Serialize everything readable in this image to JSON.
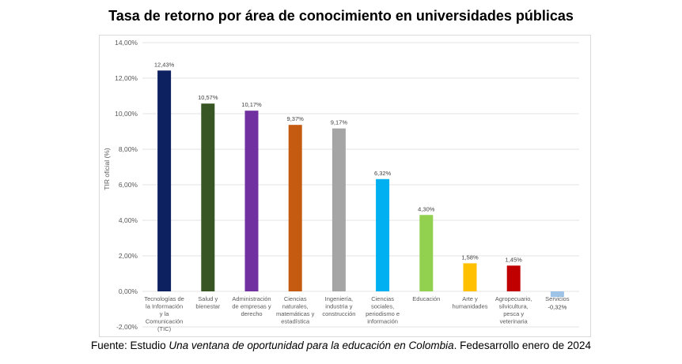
{
  "chart_data": {
    "type": "bar",
    "title": "Tasa de retorno por área de conocimiento en universidades públicas",
    "ylabel": "TIR oficial (%)",
    "xlabel": "",
    "ylim": [
      -2,
      14
    ],
    "yticks": [
      14,
      12,
      10,
      8,
      6,
      4,
      2,
      0,
      -2
    ],
    "ytick_labels": [
      "14,00%",
      "12,00%",
      "10,00%",
      "8,00%",
      "6,00%",
      "4,00%",
      "2,00%",
      "0,00%",
      "-2,00%"
    ],
    "grid": true,
    "categories": [
      [
        "Tecnologías de",
        "la Información",
        "y la",
        "Comunicación",
        "(TIC)"
      ],
      [
        "Salud y",
        "bienestar"
      ],
      [
        "Administración",
        "de empresas y",
        "derecho"
      ],
      [
        "Ciencias",
        "naturales,",
        "matemáticas y",
        "estadística"
      ],
      [
        "Ingeniería,",
        "industria y",
        "construcción"
      ],
      [
        "Ciencias",
        "sociales,",
        "periodismo e",
        "información"
      ],
      [
        "Educación"
      ],
      [
        "Arte y",
        "humanidades"
      ],
      [
        "Agropecuario,",
        "silvicultura,",
        "pesca y",
        "veterinaria"
      ],
      [
        "Servicios"
      ]
    ],
    "values": [
      12.43,
      10.57,
      10.17,
      9.37,
      9.17,
      6.32,
      4.3,
      1.58,
      1.45,
      -0.32
    ],
    "value_labels": [
      "12,43%",
      "10,57%",
      "10,17%",
      "9,37%",
      "9,17%",
      "6,32%",
      "4,30%",
      "1,58%",
      "1,45%",
      "-0,32%"
    ],
    "colors": [
      "#0d2160",
      "#375623",
      "#7030a0",
      "#c55a11",
      "#a5a5a5",
      "#00b0f0",
      "#92d050",
      "#ffc000",
      "#c00000",
      "#9dc3e6"
    ]
  },
  "source": {
    "prefix": "Fuente: Estudio ",
    "italic": "Una ventana de oportunidad para la educación en Colombia",
    "suffix": ". Fedesarrollo enero de 2024"
  }
}
